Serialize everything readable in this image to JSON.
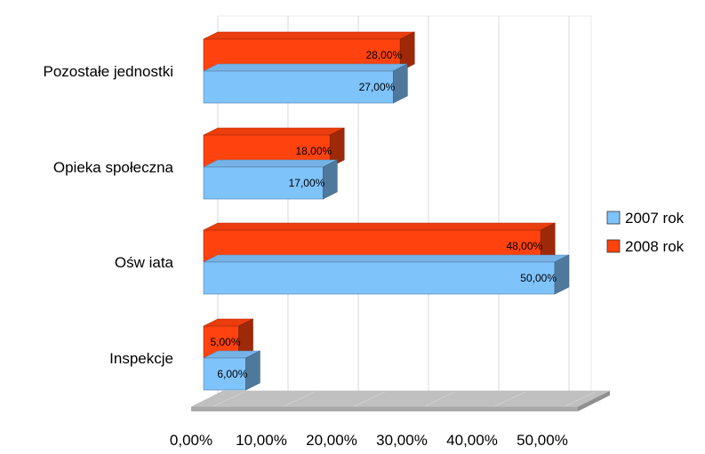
{
  "chart_data": {
    "type": "bar",
    "orientation": "horizontal",
    "three_d": true,
    "categories": [
      "Pozostałe jednostki",
      "Opieka społeczna",
      "Ośw iata",
      "Inspekcje"
    ],
    "series": [
      {
        "name": "2007 rok",
        "values": [
          27,
          17,
          50,
          6
        ],
        "labels": [
          "27,00%",
          "17,00%",
          "50,00%",
          "6,00%"
        ]
      },
      {
        "name": "2008 rok",
        "values": [
          28,
          18,
          48,
          5
        ],
        "labels": [
          "28,00%",
          "18,00%",
          "48,00%",
          "5,00%"
        ]
      }
    ],
    "x_ticks": [
      "0,00%",
      "10,00%",
      "20,00%",
      "30,00%",
      "40,00%",
      "50,00%"
    ],
    "xlim": [
      0,
      50
    ],
    "grid": true,
    "legend_position": "right",
    "colors": {
      "2007 rok": "#7fc3fb",
      "2008 rok": "#ff420e",
      "floor": "#c0c0c0",
      "grid": "#d9d9d9"
    }
  }
}
